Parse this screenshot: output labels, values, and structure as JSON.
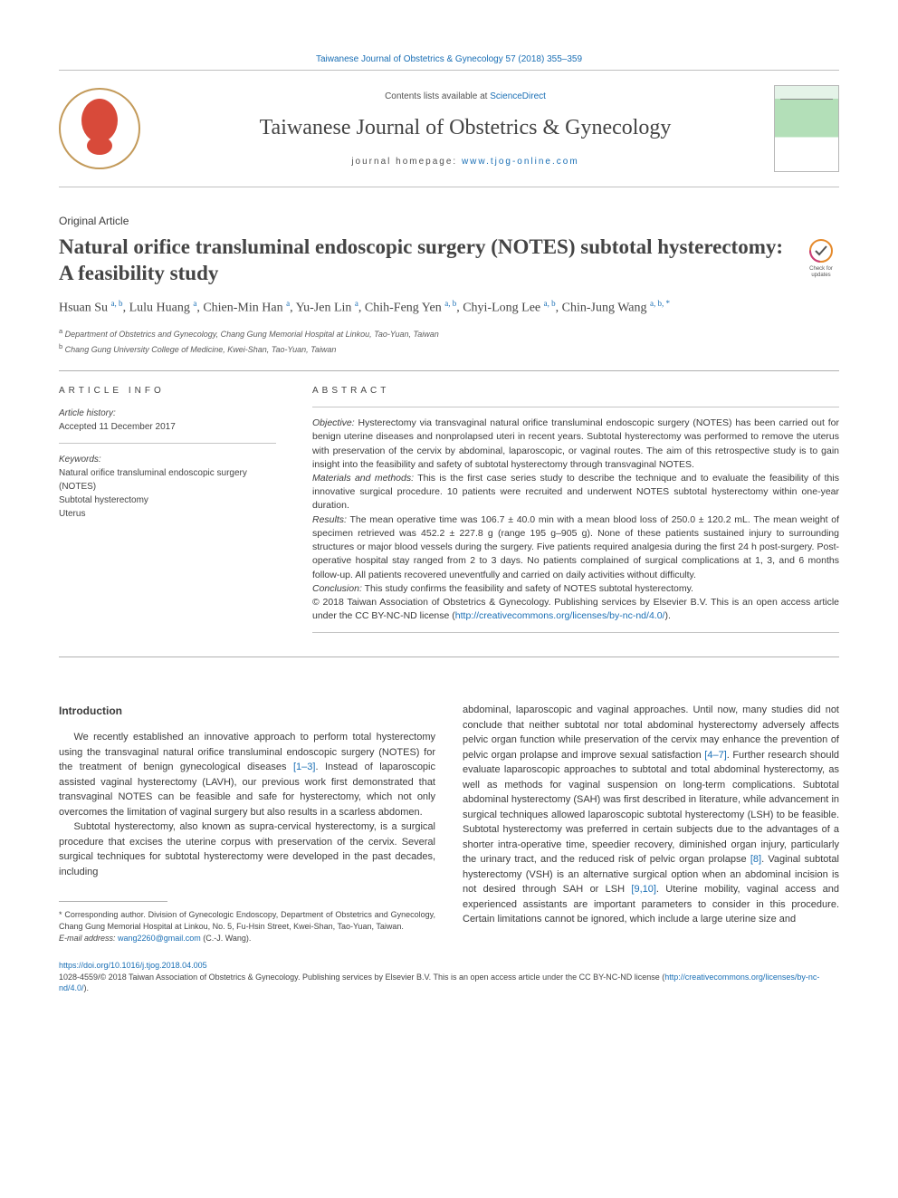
{
  "top_link": "Taiwanese Journal of Obstetrics & Gynecology 57 (2018) 355–359",
  "header": {
    "contents_text": "Contents lists available at ",
    "contents_link": "ScienceDirect",
    "journal_name": "Taiwanese Journal of Obstetrics & Gynecology",
    "homepage_label": "journal homepage: ",
    "homepage_url": "www.tjog-online.com"
  },
  "article_type": "Original Article",
  "title": "Natural orifice transluminal endoscopic surgery (NOTES) subtotal hysterectomy: A feasibility study",
  "check_badge": "Check for updates",
  "authors_html": "Hsuan Su <sup>a, b</sup>, Lulu Huang <sup>a</sup>, Chien-Min Han <sup>a</sup>, Yu-Jen Lin <sup>a</sup>, Chih-Feng Yen <sup>a, b</sup>, Chyi-Long Lee <sup>a, b</sup>, Chin-Jung Wang <sup>a, b, *</sup>",
  "affiliations": [
    {
      "sup": "a",
      "text": "Department of Obstetrics and Gynecology, Chang Gung Memorial Hospital at Linkou, Tao-Yuan, Taiwan"
    },
    {
      "sup": "b",
      "text": "Chang Gung University College of Medicine, Kwei-Shan, Tao-Yuan, Taiwan"
    }
  ],
  "article_info": {
    "head": "ARTICLE INFO",
    "history_label": "Article history:",
    "history_text": "Accepted 11 December 2017",
    "keywords_label": "Keywords:",
    "keywords": [
      "Natural orifice transluminal endoscopic surgery (NOTES)",
      "Subtotal hysterectomy",
      "Uterus"
    ]
  },
  "abstract": {
    "head": "ABSTRACT",
    "objective_label": "Objective:",
    "objective": "Hysterectomy via transvaginal natural orifice transluminal endoscopic surgery (NOTES) has been carried out for benign uterine diseases and nonprolapsed uteri in recent years. Subtotal hysterectomy was performed to remove the uterus with preservation of the cervix by abdominal, laparoscopic, or vaginal routes. The aim of this retrospective study is to gain insight into the feasibility and safety of subtotal hysterectomy through transvaginal NOTES.",
    "materials_label": "Materials and methods:",
    "materials": "This is the first case series study to describe the technique and to evaluate the feasibility of this innovative surgical procedure. 10 patients were recruited and underwent NOTES subtotal hysterectomy within one-year duration.",
    "results_label": "Results:",
    "results": "The mean operative time was 106.7 ± 40.0 min with a mean blood loss of 250.0 ± 120.2 mL. The mean weight of specimen retrieved was 452.2 ± 227.8 g (range 195 g–905 g). None of these patients sustained injury to surrounding structures or major blood vessels during the surgery. Five patients required analgesia during the first 24 h post-surgery. Post-operative hospital stay ranged from 2 to 3 days. No patients complained of surgical complications at 1, 3, and 6 months follow-up. All patients recovered uneventfully and carried on daily activities without difficulty.",
    "conclusion_label": "Conclusion:",
    "conclusion": "This study confirms the feasibility and safety of NOTES subtotal hysterectomy.",
    "copyright": "© 2018 Taiwan Association of Obstetrics & Gynecology. Publishing services by Elsevier B.V. This is an open access article under the CC BY-NC-ND license (",
    "license_url": "http://creativecommons.org/licenses/by-nc-nd/4.0/",
    "copyright_end": ")."
  },
  "intro": {
    "head": "Introduction",
    "p1_a": "We recently established an innovative approach to perform total hysterectomy using the transvaginal natural orifice transluminal endoscopic surgery (NOTES) for the treatment of benign gynecological diseases ",
    "p1_cite": "[1–3]",
    "p1_b": ". Instead of laparoscopic assisted vaginal hysterectomy (LAVH), our previous work first demonstrated that transvaginal NOTES can be feasible and safe for hysterectomy, which not only overcomes the limitation of vaginal surgery but also results in a scarless abdomen.",
    "p2": "Subtotal hysterectomy, also known as supra-cervical hysterectomy, is a surgical procedure that excises the uterine corpus with preservation of the cervix. Several surgical techniques for subtotal hysterectomy were developed in the past decades, including",
    "p2_cont_a": "abdominal, laparoscopic and vaginal approaches. Until now, many studies did not conclude that neither subtotal nor total abdominal hysterectomy adversely affects pelvic organ function while preservation of the cervix may enhance the prevention of pelvic organ prolapse and improve sexual satisfaction ",
    "p2_cite1": "[4–7]",
    "p2_cont_b": ". Further research should evaluate laparoscopic approaches to subtotal and total abdominal hysterectomy, as well as methods for vaginal suspension on long-term complications. Subtotal abdominal hysterectomy (SAH) was first described in literature, while advancement in surgical techniques allowed laparoscopic subtotal hysterectomy (LSH) to be feasible. Subtotal hysterectomy was preferred in certain subjects due to the advantages of a shorter intra-operative time, speedier recovery, diminished organ injury, particularly the urinary tract, and the reduced risk of pelvic organ prolapse ",
    "p2_cite2": "[8]",
    "p2_cont_c": ". Vaginal subtotal hysterectomy (VSH) is an alternative surgical option when an abdominal incision is not desired through SAH or LSH ",
    "p2_cite3": "[9,10]",
    "p2_cont_d": ". Uterine mobility, vaginal access and experienced assistants are important parameters to consider in this procedure. Certain limitations cannot be ignored, which include a large uterine size and"
  },
  "corresponding": {
    "label": "* Corresponding author.",
    "text": " Division of Gynecologic Endoscopy, Department of Obstetrics and Gynecology, Chang Gung Memorial Hospital at Linkou, No. 5, Fu-Hsin Street, Kwei-Shan, Tao-Yuan, Taiwan.",
    "email_label": "E-mail address: ",
    "email": "wang2260@gmail.com",
    "email_suffix": " (C.-J. Wang)."
  },
  "footer": {
    "doi": "https://doi.org/10.1016/j.tjog.2018.04.005",
    "issn_text": "1028-4559/© 2018 Taiwan Association of Obstetrics & Gynecology. Publishing services by Elsevier B.V. This is an open access article under the CC BY-NC-ND license (",
    "license_url": "http://creativecommons.org/licenses/by-nc-nd/4.0/",
    "issn_end": ")."
  },
  "colors": {
    "link": "#1a6fb5",
    "text": "#3a3a3a",
    "rule": "#b0b0b0",
    "logo_ring": "#c39a5a",
    "logo_fill": "#d84a3a"
  }
}
